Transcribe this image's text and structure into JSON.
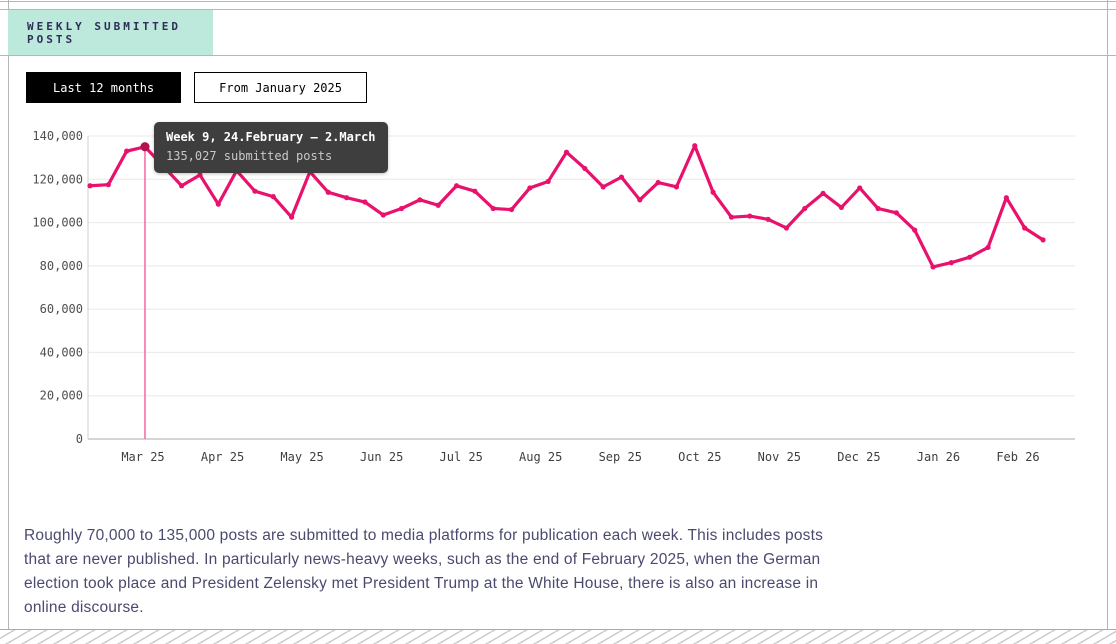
{
  "header": {
    "title": "WEEKLY SUBMITTED POSTS"
  },
  "controls": {
    "range_buttons": [
      {
        "label": "Last 12 months",
        "active": true
      },
      {
        "label": "From January 2025",
        "active": false
      }
    ]
  },
  "tooltip": {
    "title": "Week 9, 24.February – 2.March",
    "value_text": "135,027 submitted posts"
  },
  "chart_data": {
    "type": "line",
    "title": "Weekly submitted posts",
    "legend": [],
    "grid": "horizontal",
    "ylim": [
      0,
      140000
    ],
    "y_ticks": [
      0,
      20000,
      40000,
      60000,
      80000,
      100000,
      120000,
      140000
    ],
    "x_tick_labels": [
      "Mar 25",
      "Apr 25",
      "May 25",
      "Jun 25",
      "Jul 25",
      "Aug 25",
      "Sep 25",
      "Oct 25",
      "Nov 25",
      "Dec 25",
      "Jan 26",
      "Feb 26"
    ],
    "values": [
      117000,
      117500,
      133000,
      135027,
      126000,
      117000,
      122000,
      108500,
      124000,
      114500,
      112000,
      102500,
      123500,
      114000,
      111500,
      109500,
      103500,
      106500,
      110500,
      108000,
      117000,
      114500,
      106500,
      106000,
      116000,
      119000,
      132500,
      125000,
      116500,
      121000,
      110500,
      118500,
      116500,
      135500,
      114000,
      102500,
      103000,
      101500,
      97500,
      106500,
      113500,
      107000,
      116000,
      106500,
      104500,
      96500,
      79500,
      81500,
      84000,
      88500,
      111500,
      97500,
      92000
    ],
    "selected_index": 3,
    "selected_value": 135027,
    "selected_label": "Week 9, 24.February – 2.March",
    "series_color": "#e8116b",
    "selected_dot_color": "#b3124f",
    "highlight_line_color": "#f36fae"
  },
  "caption": {
    "lines": [
      "Roughly 70,000 to 135,000 posts are submitted to media platforms for publication each week. This includes posts",
      "that are never published. In particularly news-heavy weeks, such as the end of February 2025, when the German",
      "election took place and President Zelensky met President Trump at the White House, there is also an increase in",
      "online discourse."
    ]
  }
}
